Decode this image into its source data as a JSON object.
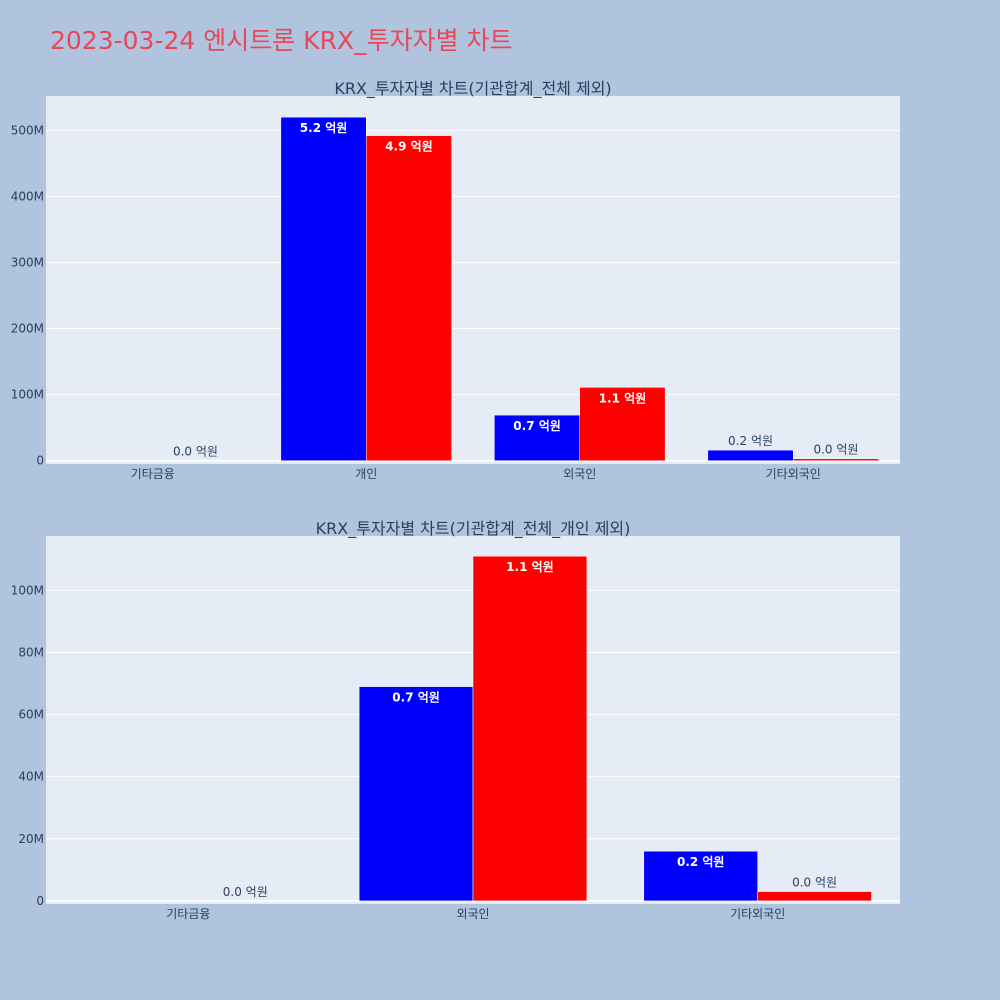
{
  "page_title": "2023-03-24 엔시트론 KRX_투자자별 차트",
  "colors": {
    "page_bg": "#b0c4de",
    "plot_bg": "#e5ecf6",
    "title": "#e8475a",
    "buy": "#0000ff",
    "sell": "#ff0000",
    "text": "#2a3f5f"
  },
  "chart_data": [
    {
      "type": "bar",
      "title": "KRX_투자자별 차트(기관합계_전체 제외)",
      "categories": [
        "기타금융",
        "개인",
        "외국인",
        "기타외국인"
      ],
      "series": [
        {
          "values": [
            0,
            520000000,
            69000000,
            16000000
          ],
          "labels": [
            "",
            "5.2 억원",
            "0.7 억원",
            "0.2 억원"
          ]
        },
        {
          "values": [
            0,
            492000000,
            111000000,
            3000000
          ],
          "labels": [
            "0.0 억원",
            "4.9 억원",
            "1.1 억원",
            "0.0 억원"
          ]
        }
      ],
      "yticks": [
        0,
        100000000,
        200000000,
        300000000,
        400000000,
        500000000
      ],
      "ytick_labels": [
        "0",
        "100M",
        "200M",
        "300M",
        "400M",
        "500M"
      ],
      "ylim": [
        -5000000,
        552000000
      ],
      "xlabel": "",
      "ylabel": "",
      "grid": true
    },
    {
      "type": "bar",
      "title": "KRX_투자자별 차트(기관합계_전체_개인 제외)",
      "categories": [
        "기타금융",
        "외국인",
        "기타외국인"
      ],
      "series": [
        {
          "values": [
            0,
            69000000,
            16000000
          ],
          "labels": [
            "",
            "0.7 억원",
            "0.2 억원"
          ]
        },
        {
          "values": [
            0,
            111000000,
            3000000
          ],
          "labels": [
            "0.0 억원",
            "1.1 억원",
            "0.0 억원"
          ]
        }
      ],
      "yticks": [
        0,
        20000000,
        40000000,
        60000000,
        80000000,
        100000000
      ],
      "ytick_labels": [
        "0",
        "20M",
        "40M",
        "60M",
        "80M",
        "100M"
      ],
      "ylim": [
        -1000000,
        117500000
      ],
      "xlabel": "",
      "ylabel": "",
      "grid": true
    }
  ]
}
